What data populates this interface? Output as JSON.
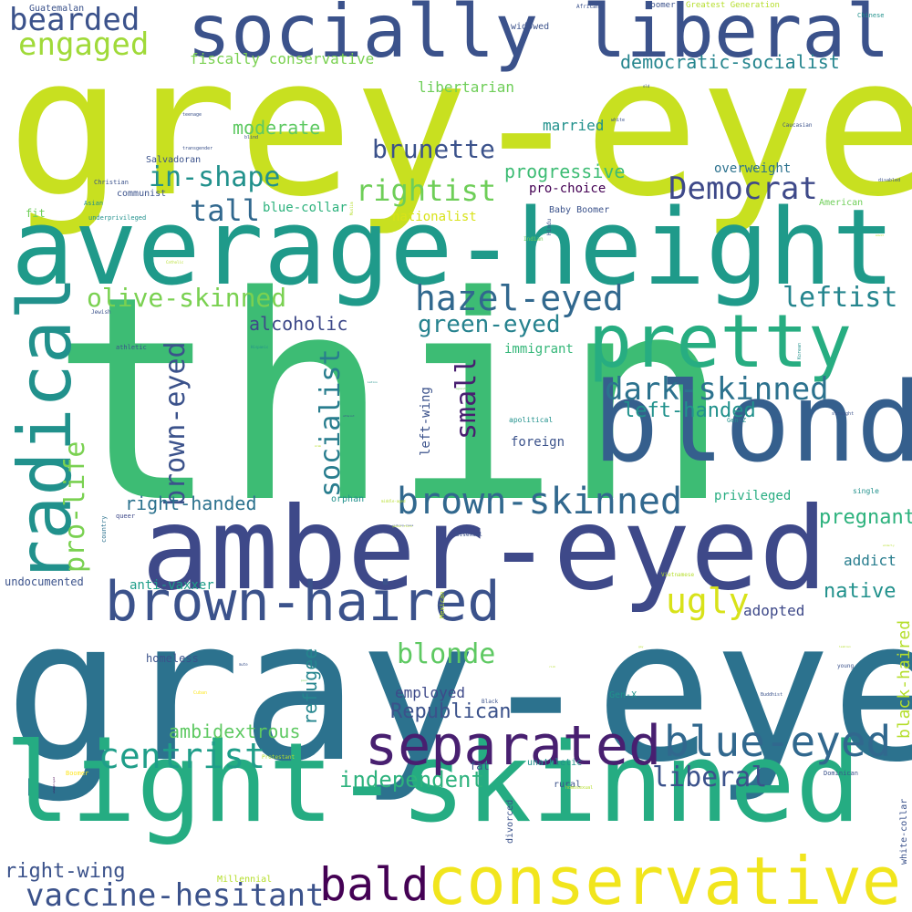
{
  "palette": {
    "background": "#ffffff",
    "colormap": "viridis",
    "dark_purple": "#440154",
    "indigo": "#3b528b",
    "slate_blue": "#31688e",
    "teal": "#21918c",
    "sea_green": "#1fa187",
    "green": "#35b779",
    "lime": "#6ece58",
    "yellow_green": "#b5de2b",
    "yellow": "#fde725"
  },
  "words": [
    {
      "text": "grey-eyed",
      "color": "#c8e020"
    },
    {
      "text": "thin",
      "color": "#3dbc74"
    },
    {
      "text": "gray-eyed",
      "color": "#2c728e"
    },
    {
      "text": "socially liberal",
      "color": "#3b528b"
    },
    {
      "text": "average-height",
      "color": "#1f9a8a"
    },
    {
      "text": "light-skinned",
      "color": "#25ac82"
    },
    {
      "text": "amber-eyed",
      "color": "#3e4989"
    },
    {
      "text": "blond",
      "color": "#355f8d"
    },
    {
      "text": "pretty",
      "color": "#27ad81"
    },
    {
      "text": "radical",
      "color": "#21918c"
    },
    {
      "text": "conservative",
      "color": "#f1e51d"
    },
    {
      "text": "brown-haired",
      "color": "#3b528b"
    },
    {
      "text": "separated",
      "color": "#481f70"
    },
    {
      "text": "blue-eyed",
      "color": "#31688e"
    },
    {
      "text": "brown-skinned",
      "color": "#31688e"
    },
    {
      "text": "bald",
      "color": "#440154"
    },
    {
      "text": "centrist",
      "color": "#1f9e89"
    },
    {
      "text": "vaccine-hesitant",
      "color": "#3b528b"
    },
    {
      "text": "dark-skinned",
      "color": "#2c728e"
    },
    {
      "text": "hazel-eyed",
      "color": "#31688e"
    },
    {
      "text": "Democrat",
      "color": "#3e4989"
    },
    {
      "text": "brunette",
      "color": "#3b528b"
    },
    {
      "text": "rightist",
      "color": "#6ece58"
    },
    {
      "text": "in-shape",
      "color": "#21918c"
    },
    {
      "text": "engaged",
      "color": "#a0da39"
    },
    {
      "text": "bearded",
      "color": "#3b528b"
    },
    {
      "text": "tall",
      "color": "#31688e"
    },
    {
      "text": "olive-skinned",
      "color": "#7ad151"
    },
    {
      "text": "socialist",
      "color": "#287d8e"
    },
    {
      "text": "brown-eyed",
      "color": "#3b528b"
    },
    {
      "text": "small",
      "color": "#481f70"
    },
    {
      "text": "leftist",
      "color": "#25858e"
    },
    {
      "text": "ugly",
      "color": "#d8e219"
    },
    {
      "text": "pro-life",
      "color": "#7ad151"
    },
    {
      "text": "blonde",
      "color": "#5ec962"
    },
    {
      "text": "liberal",
      "color": "#3b528b"
    },
    {
      "text": "independent",
      "color": "#2db27d"
    },
    {
      "text": "green-eyed",
      "color": "#26828e"
    },
    {
      "text": "left-handed",
      "color": "#21918c"
    },
    {
      "text": "Republican",
      "color": "#3b528b"
    },
    {
      "text": "ambidextrous",
      "color": "#5ec962"
    },
    {
      "text": "right-handed",
      "color": "#2c728e"
    },
    {
      "text": "pregnant",
      "color": "#2db27d"
    },
    {
      "text": "democratic-socialist",
      "color": "#25858e"
    },
    {
      "text": "fiscally conservative",
      "color": "#7ad151"
    },
    {
      "text": "progressive",
      "color": "#3dbc74"
    },
    {
      "text": "alcoholic",
      "color": "#3e4989"
    },
    {
      "text": "moderate",
      "color": "#5ec962"
    },
    {
      "text": "refugee",
      "color": "#25858e"
    },
    {
      "text": "right-wing",
      "color": "#3b528b"
    },
    {
      "text": "native",
      "color": "#21918c"
    },
    {
      "text": "black-haired",
      "color": "#b5de2b"
    },
    {
      "text": "libertarian",
      "color": "#6ece58"
    },
    {
      "text": "married",
      "color": "#21918c"
    },
    {
      "text": "employed",
      "color": "#3e4989"
    },
    {
      "text": "adopted",
      "color": "#3e4989"
    },
    {
      "text": "overweight",
      "color": "#2c728e"
    },
    {
      "text": "pro-choice",
      "color": "#440154"
    },
    {
      "text": "nationalist",
      "color": "#d8e219"
    },
    {
      "text": "blue-collar",
      "color": "#2db27d"
    },
    {
      "text": "left-wing",
      "color": "#3b528b"
    },
    {
      "text": "immigrant",
      "color": "#35b779"
    },
    {
      "text": "foreign",
      "color": "#3b528b"
    },
    {
      "text": "addict",
      "color": "#287d8e"
    },
    {
      "text": "privileged",
      "color": "#27ad81"
    },
    {
      "text": "anti-vaxxer",
      "color": "#1f9e89"
    },
    {
      "text": "homeless",
      "color": "#3b528b"
    },
    {
      "text": "undocumented",
      "color": "#3b528b"
    },
    {
      "text": "Guatemalan",
      "color": "#3b528b"
    },
    {
      "text": "Salvadoran",
      "color": "#3b528b"
    },
    {
      "text": "communist",
      "color": "#3b528b"
    },
    {
      "text": "widowed",
      "color": "#3b528b"
    },
    {
      "text": "Zoomer",
      "color": "#3b528b"
    },
    {
      "text": "Greatest Generation",
      "color": "#b5de2b"
    },
    {
      "text": "Baby Boomer",
      "color": "#3b528b"
    },
    {
      "text": "American",
      "color": "#6ece58"
    },
    {
      "text": "fit",
      "color": "#6ece58"
    },
    {
      "text": "orphan",
      "color": "#21918c"
    },
    {
      "text": "Millennial",
      "color": "#b5de2b"
    },
    {
      "text": "divorced",
      "color": "#3b528b"
    },
    {
      "text": "unathletic",
      "color": "#21918c"
    },
    {
      "text": "fat",
      "color": "#3b528b"
    },
    {
      "text": "rural",
      "color": "#3b528b"
    },
    {
      "text": "Gen-X",
      "color": "#21918c"
    },
    {
      "text": "white-collar",
      "color": "#3b528b"
    },
    {
      "text": "country",
      "color": "#2c728e"
    },
    {
      "text": "queer",
      "color": "#3e4989"
    },
    {
      "text": "Christian",
      "color": "#3b528b"
    },
    {
      "text": "Asian",
      "color": "#21918c"
    },
    {
      "text": "apolitical",
      "color": "#21918c"
    },
    {
      "text": "single",
      "color": "#21918c"
    },
    {
      "text": "underprivileged",
      "color": "#21918c"
    },
    {
      "text": "athletic",
      "color": "#3b528b"
    },
    {
      "text": "Jewish",
      "color": "#3b528b"
    },
    {
      "text": "Gen-Z",
      "color": "#21918c"
    },
    {
      "text": "bisexual",
      "color": "#3b528b"
    },
    {
      "text": "Black",
      "color": "#3b528b"
    },
    {
      "text": "Mexican",
      "color": "#b5de2b"
    },
    {
      "text": "Protestant",
      "color": "#b5de2b"
    },
    {
      "text": "Boomer",
      "color": "#fde725"
    },
    {
      "text": "homosexual",
      "color": "#b5de2b"
    },
    {
      "text": "Dominican",
      "color": "#3b528b"
    },
    {
      "text": "Vietnamese",
      "color": "#b5de2b"
    },
    {
      "text": "Cuban",
      "color": "#fde725"
    },
    {
      "text": "Hindu",
      "color": "#3b528b"
    },
    {
      "text": "Indian",
      "color": "#6ece58"
    },
    {
      "text": "African",
      "color": "#3b528b"
    },
    {
      "text": "Chinese",
      "color": "#21918c"
    },
    {
      "text": "Caucasian",
      "color": "#3b528b"
    },
    {
      "text": "white",
      "color": "#3b528b"
    },
    {
      "text": "transgender",
      "color": "#3b528b"
    },
    {
      "text": "teenage",
      "color": "#3b528b"
    },
    {
      "text": "blind",
      "color": "#3b528b"
    },
    {
      "text": "disabled",
      "color": "#3b528b"
    },
    {
      "text": "Muslim",
      "color": "#b5de2b"
    },
    {
      "text": "Korean",
      "color": "#21918c"
    },
    {
      "text": "Hispanic",
      "color": "#21918c"
    },
    {
      "text": "straight",
      "color": "#3b528b"
    },
    {
      "text": "Buddhist",
      "color": "#3b528b"
    },
    {
      "text": "young",
      "color": "#3b528b"
    },
    {
      "text": "middle-aged",
      "color": "#b5de2b"
    },
    {
      "text": "Catholic",
      "color": "#b5de2b"
    },
    {
      "text": "old",
      "color": "#3b528b"
    },
    {
      "text": "Latino",
      "color": "#21918c"
    },
    {
      "text": "deaf",
      "color": "#3b528b"
    },
    {
      "text": "Arab",
      "color": "#b5de2b"
    },
    {
      "text": "Adult",
      "color": "#b5de2b"
    },
    {
      "text": "senior",
      "color": "#b5de2b"
    },
    {
      "text": "elderly",
      "color": "#b5de2b"
    },
    {
      "text": "lesbian",
      "color": "#b5de2b"
    },
    {
      "text": "gay",
      "color": "#b5de2b"
    },
    {
      "text": "mute",
      "color": "#3b528b"
    },
    {
      "text": "unemployed",
      "color": "#440154"
    },
    {
      "text": "atheist",
      "color": "#3b528b"
    },
    {
      "text": "agnostic",
      "color": "#6ece58"
    },
    {
      "text": "poor",
      "color": "#6ece58"
    },
    {
      "text": "rich",
      "color": "#b5de2b"
    },
    {
      "text": "working-class",
      "color": "#3b528b"
    },
    {
      "text": "gender-fluid",
      "color": "#b5de2b"
    }
  ]
}
